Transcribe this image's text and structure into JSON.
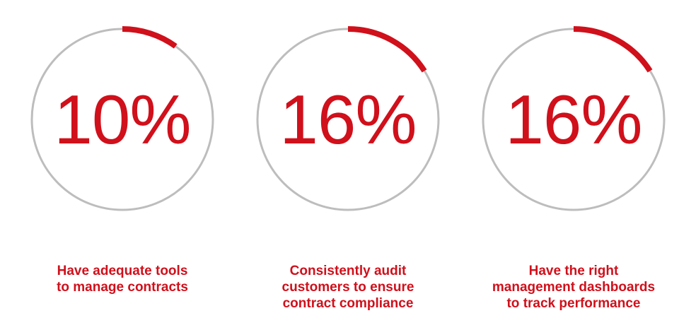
{
  "colors": {
    "accent": "#d0101b",
    "track": "#bdbdbd"
  },
  "chart_data": {
    "type": "gauge",
    "items": [
      {
        "value": 10,
        "label": "10%",
        "caption": "Have adequate tools\nto manage contracts"
      },
      {
        "value": 16,
        "label": "16%",
        "caption": "Consistently audit\ncustomers to ensure\ncontract compliance"
      },
      {
        "value": 16,
        "label": "16%",
        "caption": "Have the right\nmanagement dashboards\nto track performance"
      }
    ]
  }
}
